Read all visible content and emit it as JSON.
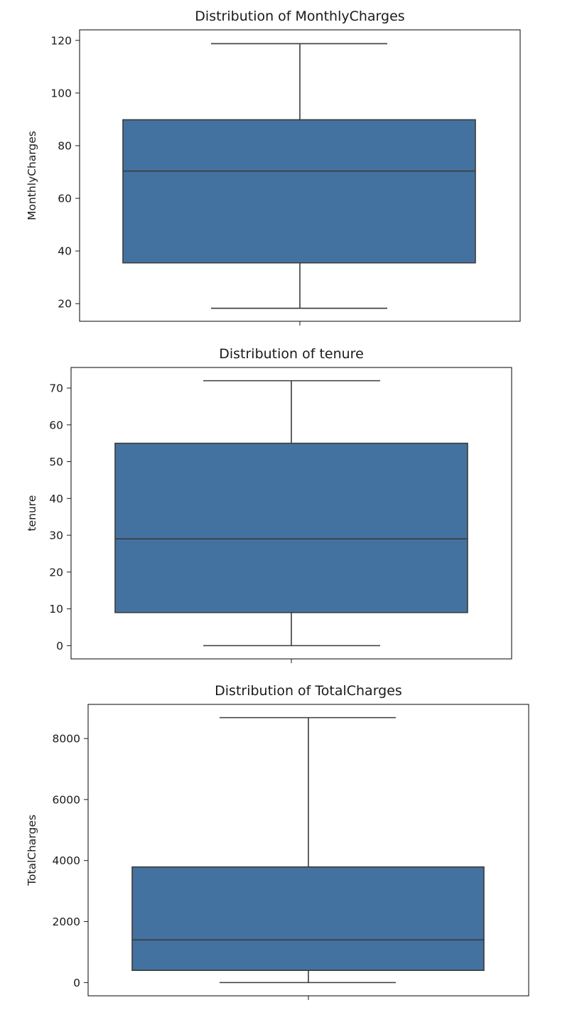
{
  "chart_data": [
    {
      "type": "box",
      "title": "Distribution of MonthlyCharges",
      "xlabel": "",
      "ylabel": "MonthlyCharges",
      "ylim": [
        13.3,
        124.0
      ],
      "yticks": [
        20,
        40,
        60,
        80,
        100,
        120
      ],
      "ytick_labels": [
        "20",
        "40",
        "60",
        "80",
        "100",
        "120"
      ],
      "box": {
        "whisker_low": 18.25,
        "q1": 35.5,
        "median": 70.35,
        "q3": 89.85,
        "whisker_high": 118.75
      },
      "grid": false
    },
    {
      "type": "box",
      "title": "Distribution of tenure",
      "xlabel": "",
      "ylabel": "tenure",
      "ylim": [
        -3.6,
        75.6
      ],
      "yticks": [
        0,
        10,
        20,
        30,
        40,
        50,
        60,
        70
      ],
      "ytick_labels": [
        "0",
        "10",
        "20",
        "30",
        "40",
        "50",
        "60",
        "70"
      ],
      "box": {
        "whisker_low": 0,
        "q1": 9,
        "median": 29,
        "q3": 55,
        "whisker_high": 72
      },
      "grid": false
    },
    {
      "type": "box",
      "title": "Distribution of TotalCharges",
      "xlabel": "",
      "ylabel": "TotalCharges",
      "ylim": [
        -434,
        9119
      ],
      "yticks": [
        0,
        2000,
        4000,
        6000,
        8000
      ],
      "ytick_labels": [
        "0",
        "2000",
        "4000",
        "6000",
        "8000"
      ],
      "box": {
        "whisker_low": 0,
        "q1": 400,
        "median": 1400,
        "q3": 3790,
        "whisker_high": 8685
      },
      "grid": false
    }
  ],
  "colors": {
    "box_fill": "#4472a0",
    "line": "#3b3b3b",
    "axes": "#1a1a1a"
  }
}
